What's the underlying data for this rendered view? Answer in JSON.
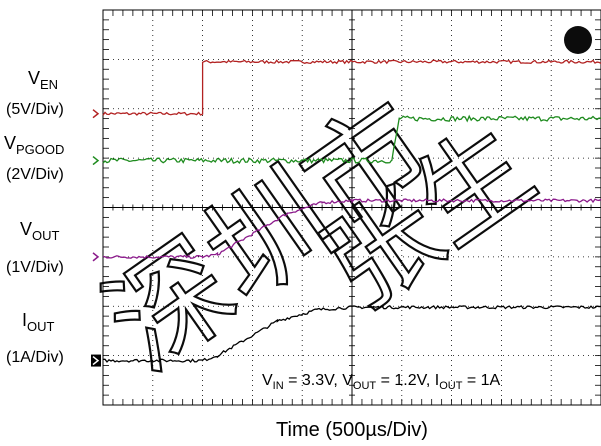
{
  "chart_data": {
    "type": "line",
    "title": "",
    "xlabel": "Time (500µs/Div)",
    "ylabel": "",
    "x_unit": "div",
    "divisions": {
      "x": 10,
      "y": 8
    },
    "xlim": [
      0,
      10
    ],
    "ylim": [
      0,
      8
    ],
    "grid": true,
    "annotation": {
      "parts": [
        {
          "t": "V",
          "sub": "IN",
          "rest": " = 3.3V, "
        },
        {
          "t": "V",
          "sub": "OUT",
          "rest": " = 1.2V, "
        },
        {
          "t": "I",
          "sub": "OUT",
          "rest": " = 1A"
        }
      ]
    },
    "series": [
      {
        "name_main": "V",
        "name_sub": "EN",
        "scale": "(5V/Div)",
        "color": "#b22222",
        "marker": "›",
        "ground_div": 5.9,
        "points": [
          [
            0,
            5.9
          ],
          [
            2.0,
            5.9
          ],
          [
            2.0,
            6.95
          ],
          [
            10,
            6.95
          ]
        ],
        "noise": 0.03
      },
      {
        "name_main": "V",
        "name_sub": "PGOOD",
        "scale": "(2V/Div)",
        "color": "#1e8b1e",
        "marker": "›",
        "ground_div": 4.95,
        "points": [
          [
            0,
            4.95
          ],
          [
            5.8,
            4.95
          ],
          [
            5.95,
            5.8
          ],
          [
            10,
            5.8
          ]
        ],
        "noise": 0.05
      },
      {
        "name_main": "V",
        "name_sub": "OUT",
        "scale": "(1V/Div)",
        "color": "#8b1a8b",
        "marker": "›",
        "ground_div": 3.0,
        "points": [
          [
            0,
            3.0
          ],
          [
            2.0,
            3.0
          ],
          [
            2.3,
            3.05
          ],
          [
            3.7,
            3.88
          ],
          [
            4.4,
            4.1
          ],
          [
            5.0,
            4.14
          ],
          [
            10,
            4.14
          ]
        ],
        "noise": 0.03
      },
      {
        "name_main": "I",
        "name_sub": "OUT",
        "scale": "(1A/Div)",
        "color": "#000000",
        "marker": "›",
        "ground_div": 0.9,
        "points": [
          [
            0,
            0.9
          ],
          [
            2.0,
            0.9
          ],
          [
            2.3,
            1.0
          ],
          [
            3.5,
            1.7
          ],
          [
            4.3,
            1.93
          ],
          [
            5.0,
            1.98
          ],
          [
            10,
            1.98
          ]
        ],
        "noise": 0.03
      }
    ]
  },
  "watermark": {
    "text": "深圳市",
    "text2": "张生",
    "color": "#000000"
  }
}
